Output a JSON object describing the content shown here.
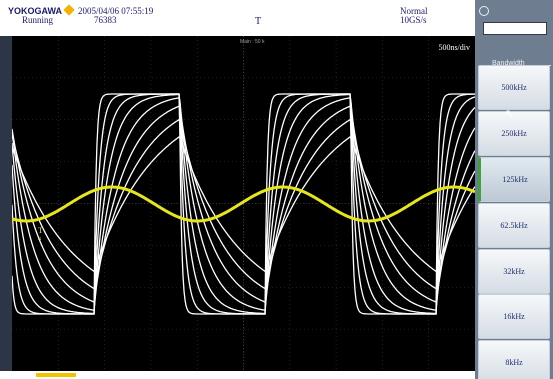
{
  "header": {
    "brand": "YOKOGAWA",
    "datetime": "2005/04/06 07:55:19",
    "run_state": "Running",
    "acquisition_count": "76383",
    "trigger_mark": "T",
    "acq_mode": "Normal",
    "sample_rate": "10GS/s"
  },
  "screen": {
    "main_label": "Main : 50 k",
    "time_div": "500ns/div",
    "channel_marker": "T",
    "channel_sub": "4"
  },
  "bandwidth_menu": {
    "title": "Bandwidth",
    "selected": "125kHz",
    "options": [
      "500kHz",
      "250kHz",
      "125kHz",
      "62.5kHz",
      "32kHz",
      "16kHz",
      "8kHz"
    ]
  },
  "colors": {
    "screen_bg": "#000000",
    "trace_white": "#ffffff",
    "trace_yellow": "#e6e61a",
    "panel_bg": "#6e7d8f",
    "brand_accent": "#f2b400"
  },
  "icons": {
    "rotary_knob": "rotary-knob-icon",
    "mouse_pointer": "mouse-pointer-icon"
  }
}
